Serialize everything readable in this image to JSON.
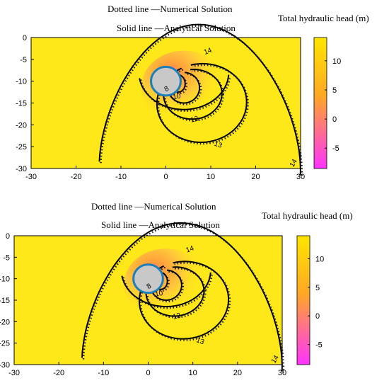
{
  "chart_data": [
    {
      "type": "contour",
      "titles": [
        "Dotted line —Numerical Solution",
        "Solid line —Analytical Solution"
      ],
      "colorbar_title": "Total hydraulic  head (m)",
      "colorbar_ticks": [
        "10",
        "5",
        "0",
        "-5"
      ],
      "colorbar_values": [
        10,
        5,
        0,
        -5
      ],
      "colorbar_range": [
        -8.5,
        14
      ],
      "colorbar_colors": [
        "#ff33ff",
        "#ffa726",
        "#ffe600"
      ],
      "xlim": [
        -30,
        30
      ],
      "ylim": [
        -30,
        0
      ],
      "x_ticks": [
        "-30",
        "-20",
        "-10",
        "0",
        "10",
        "20",
        "30"
      ],
      "y_ticks": [
        "0",
        "-5",
        "-10",
        "-15",
        "-20",
        "-25",
        "-30"
      ],
      "tunnel": {
        "center": [
          0,
          -10
        ],
        "radius": 3.3
      },
      "contour_labels": [
        "14",
        "12",
        "10",
        "8",
        "13",
        "14"
      ],
      "contour_levels": [
        8,
        10,
        12,
        13,
        14
      ],
      "background_color": "#ffe81a",
      "tunnel_fill": "#c8c8c8",
      "tunnel_edge": "#1e7fb8"
    },
    {
      "type": "contour",
      "titles": [
        "Dotted line —Numerical Solution",
        "Solid line —Analytical Solution"
      ],
      "colorbar_title": "Total hydraulic  head (m)",
      "colorbar_ticks": [
        "10",
        "5",
        "0",
        "-5"
      ],
      "colorbar_values": [
        10,
        5,
        0,
        -5
      ],
      "colorbar_range": [
        -8.5,
        14
      ],
      "colorbar_colors": [
        "#ff33ff",
        "#ffa726",
        "#ffe600"
      ],
      "xlim": [
        -30,
        30
      ],
      "ylim": [
        -30,
        0
      ],
      "x_ticks": [
        "-30",
        "-20",
        "-10",
        "0",
        "10",
        "20",
        "30"
      ],
      "y_ticks": [
        "0",
        "-5",
        "-10",
        "-15",
        "-20",
        "-25",
        "-30"
      ],
      "tunnel": {
        "center": [
          0,
          -10
        ],
        "radius": 3.3
      },
      "contour_labels": [
        "14",
        "12",
        "10",
        "8",
        "13",
        "14"
      ],
      "contour_levels": [
        8,
        10,
        12,
        13,
        14
      ],
      "background_color": "#ffe81a",
      "tunnel_fill": "#c8c8c8",
      "tunnel_edge": "#1e7fb8"
    }
  ]
}
